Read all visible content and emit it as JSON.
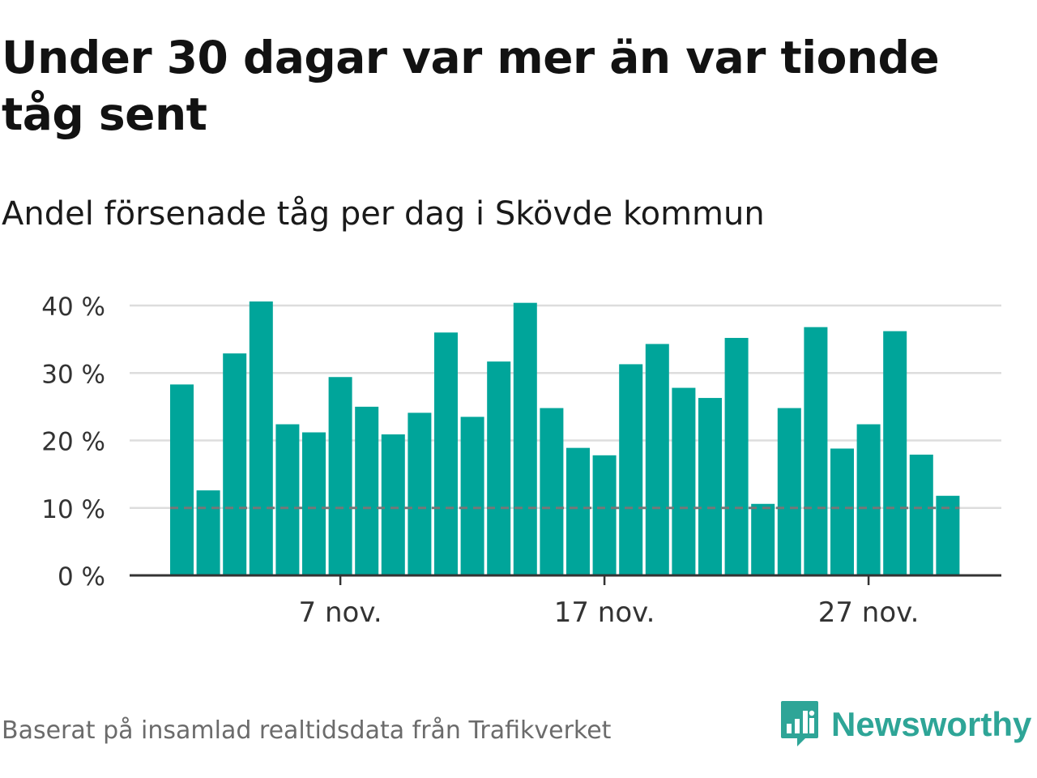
{
  "title": "Under 30 dagar var mer än var tionde tåg sent",
  "subtitle": "Andel försenade tåg per dag i Skövde kommun",
  "source": "Baserat på insamlad realtidsdata från Trafikverket",
  "brand": {
    "name": "Newsworthy",
    "color": "#2ea597",
    "icon": "newsworthy-logo-icon"
  },
  "colors": {
    "bar": "#00a59a",
    "threshold": "#777777",
    "grid": "#dddddd",
    "axis": "#333333"
  },
  "chart_data": {
    "type": "bar",
    "x_start_day": 1,
    "x_tick_days": [
      7,
      17,
      27
    ],
    "x_tick_labels": [
      "7 nov.",
      "17 nov.",
      "27 nov."
    ],
    "y_ticks": [
      0,
      10,
      20,
      30,
      40
    ],
    "y_tick_labels": [
      "0 %",
      "10 %",
      "20 %",
      "30 %",
      "40 %"
    ],
    "ylim": [
      0,
      40
    ],
    "threshold": 10,
    "grid": true,
    "values": [
      28.3,
      12.6,
      32.9,
      40.6,
      22.4,
      21.2,
      29.4,
      25.0,
      20.9,
      24.1,
      36.0,
      23.5,
      31.7,
      40.4,
      24.8,
      18.9,
      17.8,
      31.3,
      34.3,
      27.8,
      26.3,
      35.2,
      10.6,
      24.8,
      36.8,
      18.8,
      22.4,
      36.2,
      17.9,
      11.8
    ]
  }
}
